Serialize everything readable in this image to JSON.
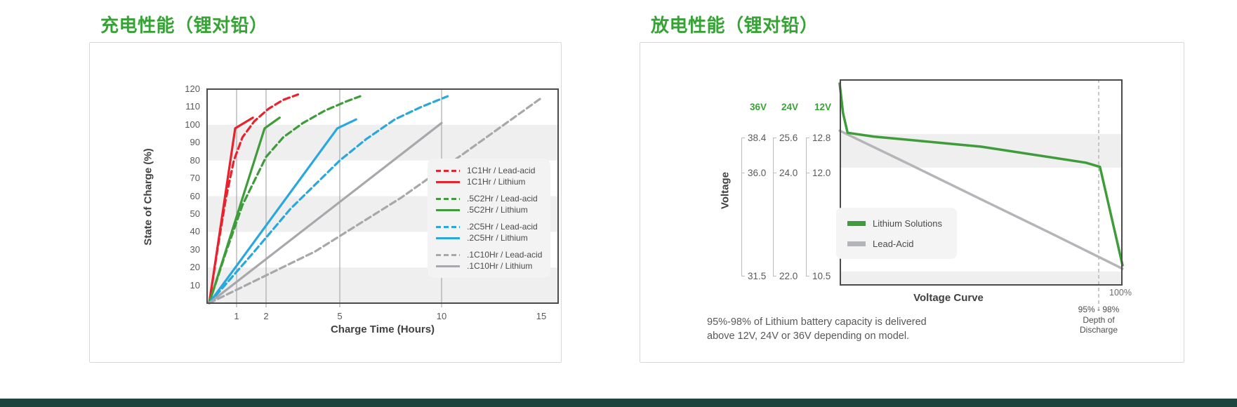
{
  "page": {
    "bottom_bar_color": "#1d453e"
  },
  "chart_data": [
    {
      "type": "line",
      "title": "充电性能（锂对铅）",
      "xlabel": "Charge Time (Hours)",
      "ylabel": "State of Charge (%)",
      "xlim": [
        0,
        15.5
      ],
      "ylim": [
        0,
        120
      ],
      "x_ticks": [
        1,
        2,
        5,
        10,
        15
      ],
      "y_ticks": [
        10,
        20,
        30,
        40,
        50,
        60,
        70,
        80,
        90,
        100,
        110,
        120
      ],
      "gridlines_x": [
        1,
        2,
        5,
        10
      ],
      "shaded_bands_pct": [
        [
          0,
          20
        ],
        [
          40,
          60
        ],
        [
          80,
          100
        ]
      ],
      "legend_position": "right",
      "series": [
        {
          "name": "1C1Hr / Lead-acid",
          "color": "#e8232e",
          "dash": true,
          "points": [
            [
              0,
              0
            ],
            [
              0.3,
              30
            ],
            [
              0.6,
              58
            ],
            [
              0.9,
              80
            ],
            [
              1.2,
              93
            ],
            [
              1.6,
              102
            ],
            [
              2.1,
              109
            ],
            [
              2.7,
              114
            ],
            [
              3.3,
              117
            ]
          ]
        },
        {
          "name": "1C1Hr / Lithium",
          "color": "#e8232e",
          "dash": false,
          "points": [
            [
              0,
              0
            ],
            [
              0.95,
              98
            ],
            [
              1.55,
              104
            ]
          ]
        },
        {
          "name": ".5C2Hr / Lead-acid",
          "color": "#3f9c3a",
          "dash": true,
          "points": [
            [
              0,
              0
            ],
            [
              0.6,
              28
            ],
            [
              1.2,
              55
            ],
            [
              2,
              82
            ],
            [
              2.7,
              93
            ],
            [
              3.5,
              101
            ],
            [
              4.4,
              108
            ],
            [
              5.3,
              113
            ],
            [
              6,
              116
            ]
          ]
        },
        {
          "name": ".5C2Hr / Lithium",
          "color": "#3f9c3a",
          "dash": false,
          "points": [
            [
              0,
              0
            ],
            [
              1.95,
              98
            ],
            [
              2.55,
              104
            ]
          ]
        },
        {
          "name": ".2C5Hr / Lead-acid",
          "color": "#29a8dd",
          "dash": true,
          "points": [
            [
              0,
              0
            ],
            [
              1.5,
              27
            ],
            [
              3,
              53
            ],
            [
              5,
              80
            ],
            [
              6.3,
              92
            ],
            [
              7.7,
              103
            ],
            [
              9,
              110
            ],
            [
              10.3,
              116
            ]
          ]
        },
        {
          "name": ".2C5Hr / Lithium",
          "color": "#29a8dd",
          "dash": false,
          "points": [
            [
              0,
              0
            ],
            [
              4.9,
              98
            ],
            [
              5.8,
              103
            ]
          ]
        },
        {
          "name": ".1C10Hr / Lead-acid",
          "color": "#a6a8ab",
          "dash": true,
          "points": [
            [
              0,
              0
            ],
            [
              4,
              29
            ],
            [
              8,
              59
            ],
            [
              11,
              83
            ],
            [
              13,
              99
            ],
            [
              15,
              115
            ]
          ]
        },
        {
          "name": ".1C10Hr / Lithium",
          "color": "#a6a8ab",
          "dash": false,
          "points": [
            [
              0,
              0
            ],
            [
              10,
              101
            ]
          ]
        }
      ]
    },
    {
      "type": "line",
      "title": "放电性能（锂对铅）",
      "ylabel": "Voltage",
      "x_axis_label": "Voltage Curve",
      "voltage_scales": [
        {
          "label": "36V",
          "values": [
            "38.4",
            "36.0",
            "31.5"
          ]
        },
        {
          "label": "24V",
          "values": [
            "25.6",
            "24.0",
            "22.0"
          ]
        },
        {
          "label": "12V",
          "values": [
            "12.8",
            "12.0",
            "10.5"
          ]
        }
      ],
      "legend": [
        {
          "name": "Lithium Solutions",
          "color": "#3f9c3a"
        },
        {
          "name": "Lead-Acid",
          "color": "#b3b5b8"
        }
      ],
      "shaded_bands_v12": [
        [
          12.8,
          12.0
        ],
        [
          10.46,
          null
        ]
      ],
      "series": [
        {
          "name": "Lead-Acid",
          "color": "#b3b5b8",
          "points": [
            [
              0,
              12.88
            ],
            [
              25,
              12.07
            ],
            [
              50,
              11.53
            ],
            [
              75,
              11.02
            ],
            [
              100,
              10.5
            ]
          ]
        },
        {
          "name": "Lithium Solutions",
          "color": "#3f9c3a",
          "points": [
            [
              0,
              14.0
            ],
            [
              1.2,
              13.3
            ],
            [
              2.8,
              12.83
            ],
            [
              12,
              12.74
            ],
            [
              50,
              12.5
            ],
            [
              87,
              12.12
            ],
            [
              92,
              12.02
            ],
            [
              100,
              10.55
            ]
          ]
        }
      ],
      "annotations": {
        "end_label": "100%",
        "dod_text": [
          "95% - 98%",
          "Depth of",
          "Discharge"
        ]
      },
      "caption": [
        "95%-98% of Lithium battery capacity is delivered",
        "above 12V, 24V or 36V depending on model."
      ]
    }
  ]
}
